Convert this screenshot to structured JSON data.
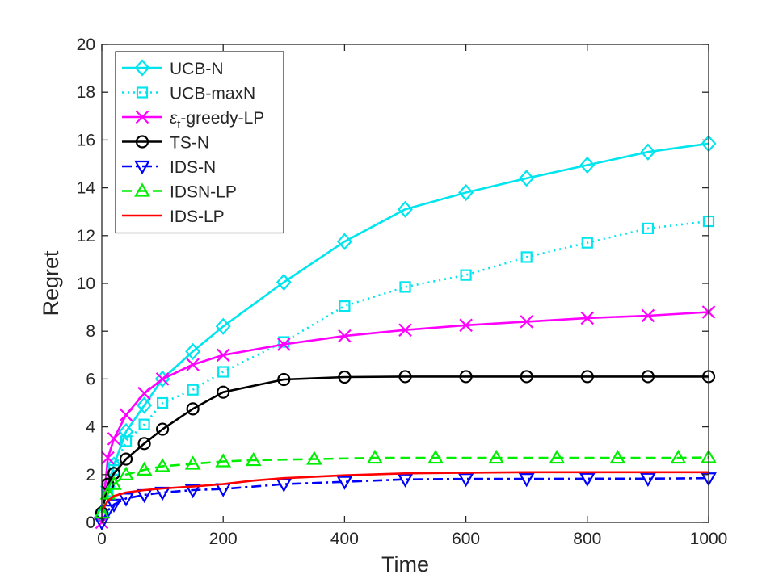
{
  "chart_data": {
    "type": "line",
    "title": "",
    "xlabel": "Time",
    "ylabel": "Regret",
    "xlim": [
      0,
      1000
    ],
    "ylim": [
      0,
      20
    ],
    "xticks": [
      0,
      200,
      400,
      600,
      800,
      1000
    ],
    "yticks": [
      0,
      2,
      4,
      6,
      8,
      10,
      12,
      14,
      16,
      18,
      20
    ],
    "grid": false,
    "legend_position": "top-left",
    "series": [
      {
        "name": "UCB-N",
        "color": "#00e5ee",
        "line_style": "solid",
        "marker": "diamond",
        "x": [
          0,
          10,
          20,
          40,
          70,
          100,
          150,
          200,
          300,
          400,
          500,
          600,
          700,
          800,
          900,
          1000
        ],
        "y": [
          0.4,
          1.5,
          2.4,
          3.8,
          4.9,
          6.0,
          7.15,
          8.2,
          10.05,
          11.75,
          13.1,
          13.8,
          14.4,
          14.95,
          15.5,
          15.85
        ]
      },
      {
        "name": "UCB-maxN",
        "color": "#00e5ee",
        "line_style": "dotted",
        "marker": "square",
        "x": [
          0,
          10,
          20,
          40,
          70,
          100,
          150,
          200,
          300,
          400,
          500,
          600,
          700,
          800,
          900,
          1000
        ],
        "y": [
          0.3,
          1.3,
          2.2,
          3.4,
          4.1,
          5.0,
          5.55,
          6.3,
          7.55,
          9.05,
          9.85,
          10.35,
          11.1,
          11.7,
          12.3,
          12.6
        ]
      },
      {
        "name": "ε_t-greedy-LP",
        "label_main": "ε",
        "label_sub": "t",
        "label_rest": "-greedy-LP",
        "color": "#ff00ff",
        "line_style": "solid",
        "marker": "x",
        "x": [
          0,
          10,
          20,
          40,
          70,
          100,
          150,
          200,
          300,
          400,
          500,
          600,
          700,
          800,
          900,
          1000
        ],
        "y": [
          0.0,
          2.7,
          3.5,
          4.5,
          5.4,
          6.0,
          6.6,
          7.0,
          7.45,
          7.8,
          8.05,
          8.25,
          8.4,
          8.55,
          8.65,
          8.8
        ]
      },
      {
        "name": "TS-N",
        "color": "#000000",
        "line_style": "solid",
        "marker": "circle",
        "x": [
          0,
          10,
          20,
          40,
          70,
          100,
          150,
          200,
          300,
          400,
          500,
          600,
          700,
          800,
          900,
          1000
        ],
        "y": [
          0.4,
          1.6,
          2.05,
          2.65,
          3.3,
          3.9,
          4.75,
          5.45,
          5.98,
          6.08,
          6.1,
          6.1,
          6.1,
          6.1,
          6.1,
          6.1
        ]
      },
      {
        "name": "IDS-N",
        "color": "#0000ff",
        "line_style": "dashdot",
        "marker": "triangle-down",
        "x": [
          0,
          10,
          20,
          40,
          70,
          100,
          150,
          200,
          300,
          400,
          500,
          600,
          700,
          800,
          900,
          1000
        ],
        "y": [
          0.0,
          0.5,
          0.75,
          1.0,
          1.15,
          1.25,
          1.35,
          1.4,
          1.6,
          1.7,
          1.8,
          1.82,
          1.82,
          1.83,
          1.83,
          1.85
        ]
      },
      {
        "name": "IDSN-LP",
        "color": "#00ee00",
        "line_style": "dashed",
        "marker": "triangle-up",
        "x": [
          0,
          10,
          20,
          40,
          70,
          100,
          150,
          200,
          250,
          350,
          450,
          550,
          650,
          750,
          850,
          950,
          1000
        ],
        "y": [
          0.4,
          1.2,
          1.6,
          2.0,
          2.2,
          2.35,
          2.45,
          2.55,
          2.6,
          2.65,
          2.7,
          2.7,
          2.7,
          2.7,
          2.7,
          2.7,
          2.72
        ]
      },
      {
        "name": "IDS-LP",
        "color": "#ff0000",
        "line_style": "solid",
        "marker": "none",
        "x": [
          0,
          10,
          20,
          40,
          70,
          100,
          150,
          200,
          250,
          300,
          400,
          500,
          600,
          700,
          800,
          900,
          1000
        ],
        "y": [
          0.5,
          0.9,
          1.1,
          1.25,
          1.35,
          1.42,
          1.5,
          1.6,
          1.75,
          1.85,
          1.97,
          2.05,
          2.08,
          2.1,
          2.1,
          2.1,
          2.1
        ]
      }
    ]
  }
}
